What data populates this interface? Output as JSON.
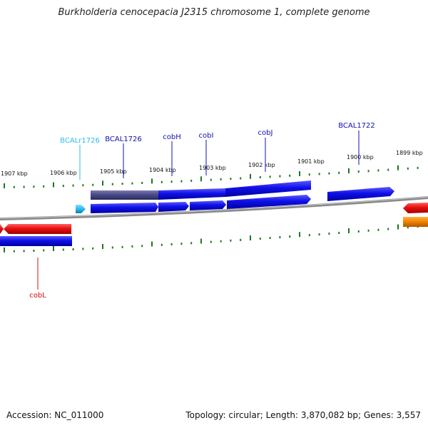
{
  "title": "Burkholderia cenocepacia J2315 chromosome 1, complete genome",
  "footer": {
    "accession": "Accession: NC_011000",
    "summary": "Topology: circular; Length: 3,870,082 bp; Genes: 3,557"
  },
  "colors": {
    "backbone": "#8a8a8a",
    "tick": "#1a7a1a",
    "cds": "#1010e0",
    "cds_dim": "#4a4a90",
    "rna": "#30b8e8",
    "reverse_gene": "#e01010",
    "other_gene": "#f08000"
  },
  "scale": {
    "unit": "kbp",
    "labels": [
      "1907 kbp",
      "1906 kbp",
      "1905 kbp",
      "1904 kbp",
      "1903 kbp",
      "1902 kbp",
      "1901 kbp",
      "1900 kbp",
      "1899 kbp"
    ]
  },
  "genes": [
    {
      "id": "bcalr1726",
      "label": "BCALr1726",
      "type": "rna",
      "color": "#30b8e8"
    },
    {
      "id": "bcal1726",
      "label": "BCAL1726",
      "type": "cds",
      "color": "#1010b0"
    },
    {
      "id": "cobh",
      "label": "cobH",
      "type": "cds",
      "color": "#1010b0"
    },
    {
      "id": "cobi",
      "label": "cobI",
      "type": "cds",
      "color": "#1010b0"
    },
    {
      "id": "cobj",
      "label": "cobJ",
      "type": "cds",
      "color": "#1010b0"
    },
    {
      "id": "bcal1722",
      "label": "BCAL1722",
      "type": "cds",
      "color": "#1010b0"
    },
    {
      "id": "cobl",
      "label": "cobL",
      "type": "cds",
      "color": "#d01010"
    }
  ]
}
